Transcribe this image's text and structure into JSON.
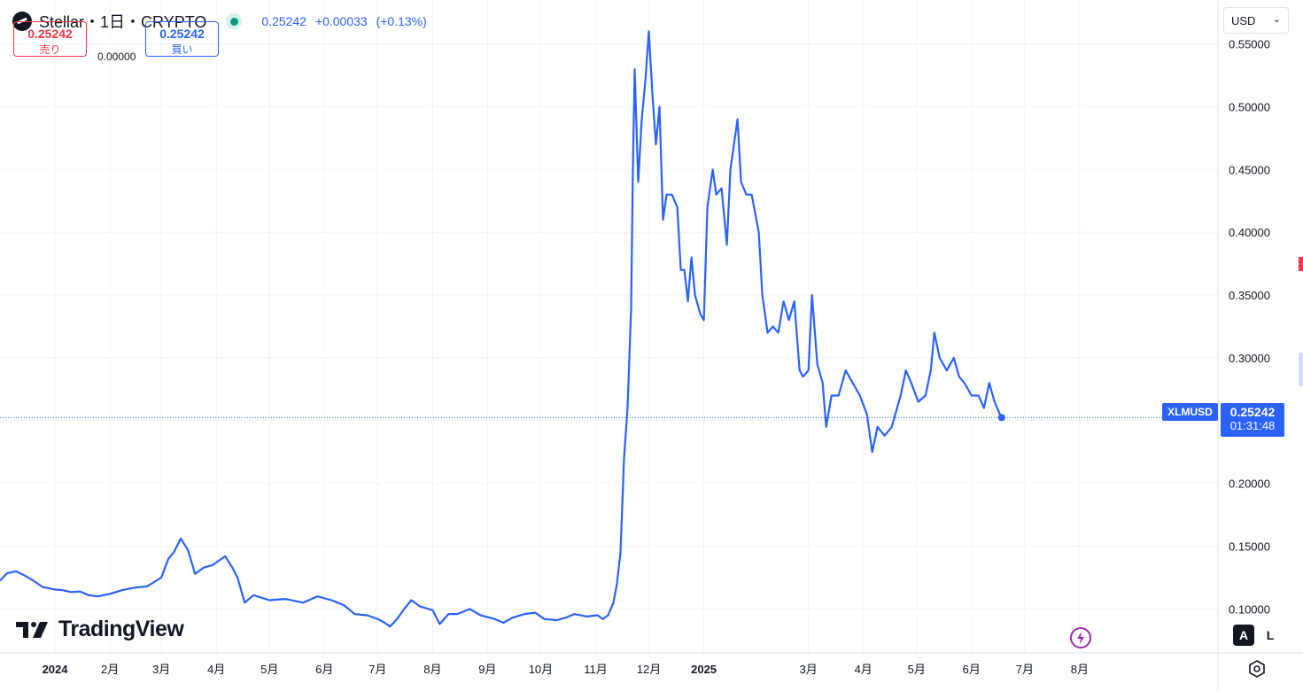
{
  "header": {
    "title": "Stellar・1日・CRYPTO",
    "price": "0.25242",
    "change": "+0.00033",
    "change_pct": "(+0.13%)"
  },
  "trade": {
    "sell_price": "0.25242",
    "sell_label": "売り",
    "spread": "0.00000",
    "buy_price": "0.25242",
    "buy_label": "買い"
  },
  "currency": {
    "selected": "USD"
  },
  "price_tag": {
    "symbol": "XLMUSD",
    "price": "0.25242",
    "countdown": "01:31:48"
  },
  "watermark": "TradingView",
  "mode_buttons": {
    "auto": "A",
    "log": "L"
  },
  "colors": {
    "line": "#2962ff",
    "up": "#089981",
    "down": "#f23645",
    "grid": "#f0f3fa"
  },
  "chart_data": {
    "type": "line",
    "series": [
      {
        "values": [
          [
            "2023-12-01",
            0.1225
          ],
          [
            "2023-12-05",
            0.1285
          ],
          [
            "2023-12-10",
            0.13
          ],
          [
            "2023-12-15",
            0.1265
          ],
          [
            "2023-12-20",
            0.1225
          ],
          [
            "2023-12-25",
            0.1175
          ],
          [
            "2024-01-01",
            0.1155
          ],
          [
            "2024-01-05",
            0.115
          ],
          [
            "2024-01-10",
            0.1135
          ],
          [
            "2024-01-15",
            0.114
          ],
          [
            "2024-01-20",
            0.111
          ],
          [
            "2024-01-25",
            0.11
          ],
          [
            "2024-02-01",
            0.112
          ],
          [
            "2024-02-08",
            0.115
          ],
          [
            "2024-02-15",
            0.117
          ],
          [
            "2024-02-22",
            0.118
          ],
          [
            "2024-03-01",
            0.125
          ],
          [
            "2024-03-05",
            0.14
          ],
          [
            "2024-03-08",
            0.145
          ],
          [
            "2024-03-12",
            0.156
          ],
          [
            "2024-03-16",
            0.147
          ],
          [
            "2024-03-20",
            0.128
          ],
          [
            "2024-03-25",
            0.133
          ],
          [
            "2024-03-30",
            0.135
          ],
          [
            "2024-04-03",
            0.139
          ],
          [
            "2024-04-06",
            0.142
          ],
          [
            "2024-04-10",
            0.133
          ],
          [
            "2024-04-13",
            0.125
          ],
          [
            "2024-04-17",
            0.105
          ],
          [
            "2024-04-22",
            0.111
          ],
          [
            "2024-05-01",
            0.107
          ],
          [
            "2024-05-10",
            0.108
          ],
          [
            "2024-05-20",
            0.105
          ],
          [
            "2024-05-28",
            0.11
          ],
          [
            "2024-06-05",
            0.107
          ],
          [
            "2024-06-12",
            0.103
          ],
          [
            "2024-06-18",
            0.096
          ],
          [
            "2024-06-25",
            0.095
          ],
          [
            "2024-07-01",
            0.092
          ],
          [
            "2024-07-05",
            0.089
          ],
          [
            "2024-07-08",
            0.086
          ],
          [
            "2024-07-12",
            0.092
          ],
          [
            "2024-07-16",
            0.1
          ],
          [
            "2024-07-20",
            0.107
          ],
          [
            "2024-07-25",
            0.102
          ],
          [
            "2024-08-01",
            0.099
          ],
          [
            "2024-08-05",
            0.088
          ],
          [
            "2024-08-10",
            0.096
          ],
          [
            "2024-08-15",
            0.096
          ],
          [
            "2024-08-22",
            0.1
          ],
          [
            "2024-08-28",
            0.095
          ],
          [
            "2024-09-05",
            0.092
          ],
          [
            "2024-09-10",
            0.089
          ],
          [
            "2024-09-15",
            0.093
          ],
          [
            "2024-09-22",
            0.096
          ],
          [
            "2024-09-28",
            0.097
          ],
          [
            "2024-10-03",
            0.092
          ],
          [
            "2024-10-10",
            0.091
          ],
          [
            "2024-10-15",
            0.093
          ],
          [
            "2024-10-20",
            0.096
          ],
          [
            "2024-10-27",
            0.094
          ],
          [
            "2024-11-02",
            0.095
          ],
          [
            "2024-11-05",
            0.092
          ],
          [
            "2024-11-08",
            0.095
          ],
          [
            "2024-11-11",
            0.105
          ],
          [
            "2024-11-13",
            0.12
          ],
          [
            "2024-11-15",
            0.145
          ],
          [
            "2024-11-17",
            0.22
          ],
          [
            "2024-11-19",
            0.26
          ],
          [
            "2024-11-21",
            0.34
          ],
          [
            "2024-11-22",
            0.45
          ],
          [
            "2024-11-23",
            0.53
          ],
          [
            "2024-11-25",
            0.44
          ],
          [
            "2024-11-27",
            0.49
          ],
          [
            "2024-11-29",
            0.52
          ],
          [
            "2024-12-01",
            0.56
          ],
          [
            "2024-12-03",
            0.51
          ],
          [
            "2024-12-05",
            0.47
          ],
          [
            "2024-12-07",
            0.5
          ],
          [
            "2024-12-09",
            0.41
          ],
          [
            "2024-12-11",
            0.43
          ],
          [
            "2024-12-14",
            0.43
          ],
          [
            "2024-12-17",
            0.42
          ],
          [
            "2024-12-19",
            0.37
          ],
          [
            "2024-12-21",
            0.37
          ],
          [
            "2024-12-23",
            0.345
          ],
          [
            "2024-12-25",
            0.38
          ],
          [
            "2024-12-27",
            0.35
          ],
          [
            "2024-12-30",
            0.335
          ],
          [
            "2025-01-01",
            0.33
          ],
          [
            "2025-01-03",
            0.42
          ],
          [
            "2025-01-06",
            0.45
          ],
          [
            "2025-01-08",
            0.43
          ],
          [
            "2025-01-11",
            0.435
          ],
          [
            "2025-01-14",
            0.39
          ],
          [
            "2025-01-16",
            0.45
          ],
          [
            "2025-01-18",
            0.47
          ],
          [
            "2025-01-20",
            0.49
          ],
          [
            "2025-01-22",
            0.44
          ],
          [
            "2025-01-25",
            0.43
          ],
          [
            "2025-01-28",
            0.43
          ],
          [
            "2025-02-01",
            0.4
          ],
          [
            "2025-02-03",
            0.35
          ],
          [
            "2025-02-06",
            0.32
          ],
          [
            "2025-02-09",
            0.325
          ],
          [
            "2025-02-12",
            0.32
          ],
          [
            "2025-02-15",
            0.345
          ],
          [
            "2025-02-18",
            0.33
          ],
          [
            "2025-02-21",
            0.345
          ],
          [
            "2025-02-24",
            0.29
          ],
          [
            "2025-02-26",
            0.285
          ],
          [
            "2025-03-01",
            0.29
          ],
          [
            "2025-03-03",
            0.35
          ],
          [
            "2025-03-06",
            0.295
          ],
          [
            "2025-03-09",
            0.28
          ],
          [
            "2025-03-11",
            0.245
          ],
          [
            "2025-03-14",
            0.27
          ],
          [
            "2025-03-18",
            0.27
          ],
          [
            "2025-03-22",
            0.29
          ],
          [
            "2025-03-26",
            0.28
          ],
          [
            "2025-03-30",
            0.27
          ],
          [
            "2025-04-03",
            0.255
          ],
          [
            "2025-04-06",
            0.225
          ],
          [
            "2025-04-09",
            0.245
          ],
          [
            "2025-04-13",
            0.238
          ],
          [
            "2025-04-17",
            0.245
          ],
          [
            "2025-04-22",
            0.27
          ],
          [
            "2025-04-25",
            0.29
          ],
          [
            "2025-04-28",
            0.28
          ],
          [
            "2025-05-02",
            0.265
          ],
          [
            "2025-05-06",
            0.27
          ],
          [
            "2025-05-09",
            0.29
          ],
          [
            "2025-05-11",
            0.32
          ],
          [
            "2025-05-14",
            0.3
          ],
          [
            "2025-05-18",
            0.29
          ],
          [
            "2025-05-22",
            0.3
          ],
          [
            "2025-05-25",
            0.285
          ],
          [
            "2025-05-28",
            0.28
          ],
          [
            "2025-06-01",
            0.27
          ],
          [
            "2025-06-05",
            0.27
          ],
          [
            "2025-06-08",
            0.26
          ],
          [
            "2025-06-11",
            0.28
          ],
          [
            "2025-06-14",
            0.265
          ],
          [
            "2025-06-17",
            0.255
          ],
          [
            "2025-06-18",
            0.25242
          ]
        ]
      }
    ],
    "ylim": [
      0.065,
      0.585
    ],
    "yticks": [
      "0.55000",
      "0.50000",
      "0.45000",
      "0.40000",
      "0.35000",
      "0.30000",
      "0.20000",
      "0.15000",
      "0.10000"
    ],
    "xticks": [
      {
        "label": "2024",
        "date": "2024-01-01",
        "bold": true
      },
      {
        "label": "2月",
        "date": "2024-02-01"
      },
      {
        "label": "3月",
        "date": "2024-03-01"
      },
      {
        "label": "4月",
        "date": "2024-04-01"
      },
      {
        "label": "5月",
        "date": "2024-05-01"
      },
      {
        "label": "6月",
        "date": "2024-06-01"
      },
      {
        "label": "7月",
        "date": "2024-07-01"
      },
      {
        "label": "8月",
        "date": "2024-08-01"
      },
      {
        "label": "9月",
        "date": "2024-09-01"
      },
      {
        "label": "10月",
        "date": "2024-10-01"
      },
      {
        "label": "11月",
        "date": "2024-11-01"
      },
      {
        "label": "12月",
        "date": "2024-12-01"
      },
      {
        "label": "2025",
        "date": "2025-01-01",
        "bold": true
      },
      {
        "label": "3月",
        "date": "2025-03-01"
      },
      {
        "label": "4月",
        "date": "2025-04-01"
      },
      {
        "label": "5月",
        "date": "2025-05-01"
      },
      {
        "label": "6月",
        "date": "2025-06-01"
      },
      {
        "label": "7月",
        "date": "2025-07-01"
      },
      {
        "label": "8月",
        "date": "2025-08-01"
      }
    ],
    "grid": true,
    "last_value": 0.25242
  }
}
